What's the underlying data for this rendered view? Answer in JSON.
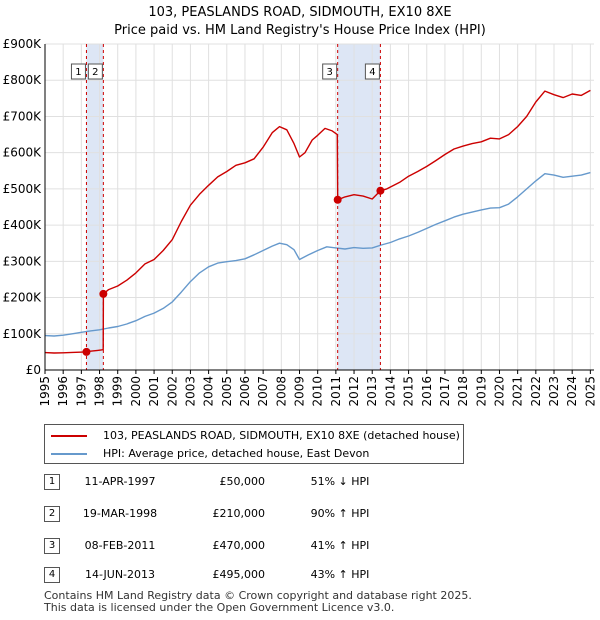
{
  "title_line1": "103, PEASLANDS ROAD, SIDMOUTH, EX10 8XE",
  "title_line2": "Price paid vs. HM Land Registry's House Price Index (HPI)",
  "colors": {
    "property": "#cc0000",
    "hpi": "#6699cc",
    "shade": "#dde6f5",
    "grid": "#e0e0e0"
  },
  "chart_data": {
    "type": "line",
    "xlim": [
      1995,
      2025.2
    ],
    "ylim": [
      0,
      900000
    ],
    "y_ticks": [
      {
        "value": 0,
        "label": "£0"
      },
      {
        "value": 100000,
        "label": "£100K"
      },
      {
        "value": 200000,
        "label": "£200K"
      },
      {
        "value": 300000,
        "label": "£300K"
      },
      {
        "value": 400000,
        "label": "£400K"
      },
      {
        "value": 500000,
        "label": "£500K"
      },
      {
        "value": 600000,
        "label": "£600K"
      },
      {
        "value": 700000,
        "label": "£700K"
      },
      {
        "value": 800000,
        "label": "£800K"
      },
      {
        "value": 900000,
        "label": "£900K"
      }
    ],
    "x_ticks": [
      "1995",
      "1996",
      "1997",
      "1998",
      "1999",
      "2000",
      "2001",
      "2002",
      "2003",
      "2004",
      "2005",
      "2006",
      "2007",
      "2008",
      "2009",
      "2010",
      "2011",
      "2012",
      "2013",
      "2014",
      "2015",
      "2016",
      "2017",
      "2018",
      "2019",
      "2020",
      "2021",
      "2022",
      "2023",
      "2024",
      "2025"
    ],
    "shaded_ranges": [
      [
        1997.28,
        1998.21
      ],
      [
        2011.1,
        2013.45
      ]
    ],
    "series": [
      {
        "name": "103, PEASLANDS ROAD, SIDMOUTH, EX10 8XE (detached house)",
        "color": "#cc0000",
        "points": [
          [
            1995,
            48000
          ],
          [
            1995.5,
            47000
          ],
          [
            1996,
            47500
          ],
          [
            1996.5,
            48500
          ],
          [
            1997.28,
            50000
          ],
          [
            1997.5,
            52000
          ],
          [
            1997.9,
            54000
          ],
          [
            1998.2,
            56000
          ],
          [
            1998.21,
            210000
          ],
          [
            1998.5,
            222000
          ],
          [
            1999,
            232000
          ],
          [
            1999.5,
            248000
          ],
          [
            2000,
            268000
          ],
          [
            2000.5,
            293000
          ],
          [
            2001,
            305000
          ],
          [
            2001.5,
            330000
          ],
          [
            2002,
            360000
          ],
          [
            2002.5,
            410000
          ],
          [
            2003,
            455000
          ],
          [
            2003.5,
            485000
          ],
          [
            2004,
            510000
          ],
          [
            2004.5,
            533000
          ],
          [
            2005,
            548000
          ],
          [
            2005.5,
            565000
          ],
          [
            2006,
            572000
          ],
          [
            2006.5,
            583000
          ],
          [
            2007,
            615000
          ],
          [
            2007.5,
            655000
          ],
          [
            2007.9,
            672000
          ],
          [
            2008.3,
            663000
          ],
          [
            2008.7,
            625000
          ],
          [
            2009,
            588000
          ],
          [
            2009.3,
            600000
          ],
          [
            2009.7,
            635000
          ],
          [
            2010,
            648000
          ],
          [
            2010.4,
            667000
          ],
          [
            2010.8,
            660000
          ],
          [
            2011.08,
            650000
          ],
          [
            2011.1,
            470000
          ],
          [
            2011.5,
            478000
          ],
          [
            2012,
            484000
          ],
          [
            2012.5,
            480000
          ],
          [
            2013,
            472000
          ],
          [
            2013.45,
            495000
          ],
          [
            2013.8,
            500000
          ],
          [
            2014.5,
            518000
          ],
          [
            2015,
            535000
          ],
          [
            2015.5,
            548000
          ],
          [
            2016,
            562000
          ],
          [
            2016.5,
            578000
          ],
          [
            2017,
            595000
          ],
          [
            2017.5,
            610000
          ],
          [
            2018,
            618000
          ],
          [
            2018.5,
            625000
          ],
          [
            2019,
            630000
          ],
          [
            2019.5,
            640000
          ],
          [
            2020,
            638000
          ],
          [
            2020.5,
            650000
          ],
          [
            2021,
            672000
          ],
          [
            2021.5,
            700000
          ],
          [
            2022,
            740000
          ],
          [
            2022.5,
            770000
          ],
          [
            2023,
            760000
          ],
          [
            2023.5,
            752000
          ],
          [
            2024,
            762000
          ],
          [
            2024.5,
            758000
          ],
          [
            2025,
            772000
          ]
        ]
      },
      {
        "name": "HPI: Average price, detached house, East Devon",
        "color": "#6699cc",
        "points": [
          [
            1995,
            95000
          ],
          [
            1995.5,
            94000
          ],
          [
            1996,
            96000
          ],
          [
            1996.5,
            100000
          ],
          [
            1997,
            104000
          ],
          [
            1997.5,
            108000
          ],
          [
            1998,
            111000
          ],
          [
            1998.5,
            116000
          ],
          [
            1999,
            120000
          ],
          [
            1999.5,
            127000
          ],
          [
            2000,
            136000
          ],
          [
            2000.5,
            148000
          ],
          [
            2001,
            157000
          ],
          [
            2001.5,
            170000
          ],
          [
            2002,
            188000
          ],
          [
            2002.5,
            215000
          ],
          [
            2003,
            244000
          ],
          [
            2003.5,
            268000
          ],
          [
            2004,
            285000
          ],
          [
            2004.5,
            295000
          ],
          [
            2005,
            299000
          ],
          [
            2005.5,
            302000
          ],
          [
            2006,
            307000
          ],
          [
            2006.5,
            318000
          ],
          [
            2007,
            330000
          ],
          [
            2007.5,
            342000
          ],
          [
            2007.9,
            350000
          ],
          [
            2008.3,
            346000
          ],
          [
            2008.7,
            332000
          ],
          [
            2009,
            305000
          ],
          [
            2009.5,
            318000
          ],
          [
            2010,
            330000
          ],
          [
            2010.5,
            340000
          ],
          [
            2011,
            337000
          ],
          [
            2011.5,
            334000
          ],
          [
            2012,
            338000
          ],
          [
            2012.5,
            336000
          ],
          [
            2013,
            337000
          ],
          [
            2013.5,
            345000
          ],
          [
            2014,
            352000
          ],
          [
            2014.5,
            362000
          ],
          [
            2015,
            370000
          ],
          [
            2015.5,
            380000
          ],
          [
            2016,
            391000
          ],
          [
            2016.5,
            402000
          ],
          [
            2017,
            412000
          ],
          [
            2017.5,
            422000
          ],
          [
            2018,
            430000
          ],
          [
            2018.5,
            436000
          ],
          [
            2019,
            442000
          ],
          [
            2019.5,
            447000
          ],
          [
            2020,
            448000
          ],
          [
            2020.5,
            458000
          ],
          [
            2021,
            478000
          ],
          [
            2021.5,
            500000
          ],
          [
            2022,
            522000
          ],
          [
            2022.5,
            542000
          ],
          [
            2023,
            538000
          ],
          [
            2023.5,
            532000
          ],
          [
            2024,
            535000
          ],
          [
            2024.5,
            538000
          ],
          [
            2025,
            545000
          ]
        ]
      }
    ],
    "transactions": [
      {
        "id": "1",
        "x": 1997.28,
        "price": 50000
      },
      {
        "id": "2",
        "x": 1998.21,
        "price": 210000
      },
      {
        "id": "3",
        "x": 2011.1,
        "price": 470000
      },
      {
        "id": "4",
        "x": 2013.45,
        "price": 495000
      }
    ],
    "markers": [
      {
        "id": "1",
        "x": 1997.28
      },
      {
        "id": "2",
        "x": 1998.21
      },
      {
        "id": "3",
        "x": 2011.1
      },
      {
        "id": "4",
        "x": 2013.45
      }
    ]
  },
  "legend": {
    "property_label": "103, PEASLANDS ROAD, SIDMOUTH, EX10 8XE (detached house)",
    "hpi_label": "HPI: Average price, detached house, East Devon"
  },
  "table": [
    {
      "num": "1",
      "date": "11-APR-1997",
      "price": "£50,000",
      "hpi": "51% ↓ HPI"
    },
    {
      "num": "2",
      "date": "19-MAR-1998",
      "price": "£210,000",
      "hpi": "90% ↑ HPI"
    },
    {
      "num": "3",
      "date": "08-FEB-2011",
      "price": "£470,000",
      "hpi": "41% ↑ HPI"
    },
    {
      "num": "4",
      "date": "14-JUN-2013",
      "price": "£495,000",
      "hpi": "43% ↑ HPI"
    }
  ],
  "footer_line1": "Contains HM Land Registry data © Crown copyright and database right 2025.",
  "footer_line2": "This data is licensed under the Open Government Licence v3.0."
}
